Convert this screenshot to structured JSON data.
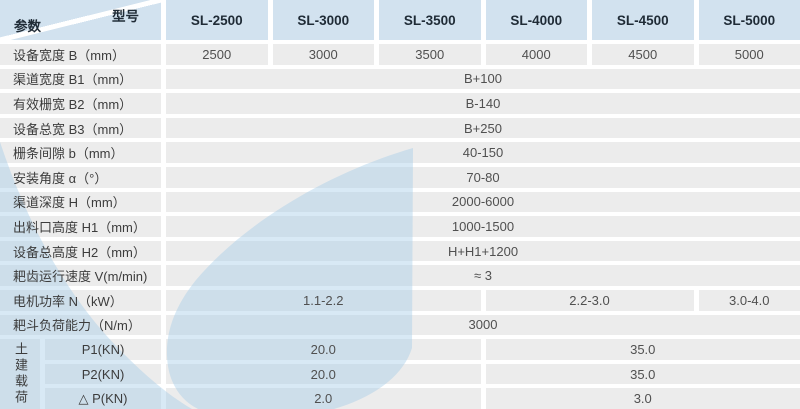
{
  "header": {
    "corner": {
      "top_right": "型号",
      "bottom_left": "参数"
    },
    "models": [
      "SL-2500",
      "SL-3000",
      "SL-3500",
      "SL-4000",
      "SL-4500",
      "SL-5000"
    ]
  },
  "rows": [
    {
      "label": "设备宽度 B（mm）",
      "cells": [
        {
          "span": 1,
          "value": "2500"
        },
        {
          "span": 1,
          "value": "3000"
        },
        {
          "span": 1,
          "value": "3500"
        },
        {
          "span": 1,
          "value": "4000"
        },
        {
          "span": 1,
          "value": "4500"
        },
        {
          "span": 1,
          "value": "5000"
        }
      ]
    },
    {
      "label": "渠道宽度 B1（mm）",
      "cells": [
        {
          "span": 6,
          "value": "B+100"
        }
      ]
    },
    {
      "label": "有效栅宽 B2（mm）",
      "cells": [
        {
          "span": 6,
          "value": "B-140"
        }
      ]
    },
    {
      "label": "设备总宽 B3（mm）",
      "cells": [
        {
          "span": 6,
          "value": "B+250"
        }
      ]
    },
    {
      "label": "栅条间隙 b（mm）",
      "cells": [
        {
          "span": 6,
          "value": "40-150"
        }
      ]
    },
    {
      "label": "安装角度 α（°）",
      "cells": [
        {
          "span": 6,
          "value": "70-80"
        }
      ]
    },
    {
      "label": "渠道深度 H（mm）",
      "cells": [
        {
          "span": 6,
          "value": "2000-6000"
        }
      ]
    },
    {
      "label": "出料口高度 H1（mm）",
      "cells": [
        {
          "span": 6,
          "value": "1000-1500"
        }
      ]
    },
    {
      "label": "设备总高度 H2（mm）",
      "cells": [
        {
          "span": 6,
          "value": "H+H1+1200"
        }
      ]
    },
    {
      "label": "耙齿运行速度 V(m/min)",
      "cells": [
        {
          "span": 6,
          "value": "≈ 3"
        }
      ]
    },
    {
      "label": "电机功率 N（kW）",
      "cells": [
        {
          "span": 3,
          "value": "1.1-2.2"
        },
        {
          "span": 2,
          "value": "2.2-3.0"
        },
        {
          "span": 1,
          "value": "3.0-4.0"
        }
      ]
    },
    {
      "label": "耙斗负荷能力（N/m）",
      "cells": [
        {
          "span": 6,
          "value": "3000"
        }
      ]
    }
  ],
  "civil_load_group": {
    "label": "土建载荷",
    "rows": [
      {
        "sublabel": "P1(KN)",
        "cells": [
          {
            "span": 3,
            "value": "20.0"
          },
          {
            "span": 3,
            "value": "35.0"
          }
        ]
      },
      {
        "sublabel": "P2(KN)",
        "cells": [
          {
            "span": 3,
            "value": "20.0"
          },
          {
            "span": 3,
            "value": "35.0"
          }
        ]
      },
      {
        "sublabel": "△ P(KN)",
        "cells": [
          {
            "span": 3,
            "value": "2.0"
          },
          {
            "span": 3,
            "value": "3.0"
          }
        ]
      }
    ]
  },
  "colors": {
    "header_bg": "#d2e2ef",
    "cell_bg": "#ececec",
    "watermark_blue": "#a9cfe8",
    "header_text": "#1f2b36",
    "label_text": "#3c3c3c",
    "value_text": "#505050"
  }
}
